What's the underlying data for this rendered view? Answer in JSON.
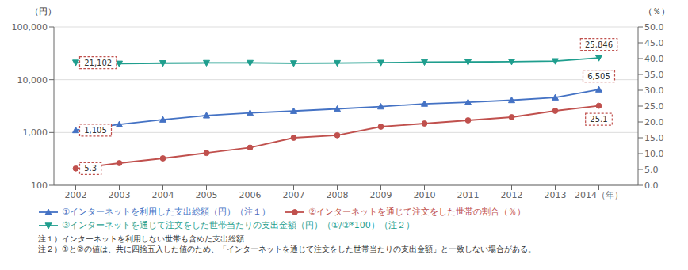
{
  "chart_data": {
    "type": "line",
    "x": [
      2002,
      2003,
      2004,
      2005,
      2006,
      2007,
      2008,
      2009,
      2010,
      2011,
      2012,
      2013,
      2014
    ],
    "xlim": [
      2001.5,
      2014.9
    ],
    "xticks": [
      2002,
      2003,
      2004,
      2005,
      2006,
      2007,
      2008,
      2009,
      2010,
      2011,
      2012,
      2013,
      {
        "value": 2014,
        "label": "2014（年）"
      }
    ],
    "log": "y",
    "ylim": [
      100,
      100000
    ],
    "yticks": [
      100,
      {
        "value": 1000,
        "label": "1,000"
      },
      {
        "value": 10000,
        "label": "10,000"
      },
      {
        "value": 100000,
        "label": "100,000"
      }
    ],
    "ylabel": "（円）",
    "y2lim": [
      0.0,
      50.0
    ],
    "y2ticks": [
      {
        "value": 0.0,
        "label": "0.0"
      },
      {
        "value": 5.0,
        "label": "5.0"
      },
      {
        "value": 10.0,
        "label": "10.0"
      },
      {
        "value": 15.0,
        "label": "15.0"
      },
      {
        "value": 20.0,
        "label": "20.0"
      },
      {
        "value": 25.0,
        "label": "25.0"
      },
      {
        "value": 30.0,
        "label": "30.0"
      },
      {
        "value": 35.0,
        "label": "35.0"
      },
      {
        "value": 40.0,
        "label": "40.0"
      },
      {
        "value": 45.0,
        "label": "45.0"
      },
      {
        "value": 50.0,
        "label": "50.0"
      }
    ],
    "y2label": "（％）",
    "grid": true,
    "legend": "bottom",
    "series": [
      {
        "name": "①インターネットを利用した支出総額（円）（注１）",
        "color": "#4472C4",
        "marker": "triangle-up",
        "values": [
          1105,
          1420,
          1750,
          2100,
          2350,
          2550,
          2800,
          3100,
          3500,
          3750,
          4100,
          4600,
          6505
        ]
      },
      {
        "name": "②インターネットを通じて注文をした世帯の割合（％）",
        "color": "#C0504D",
        "marker": "circle",
        "axis": "y2",
        "values": [
          5.3,
          7.0,
          8.5,
          10.2,
          11.9,
          15.0,
          15.8,
          18.5,
          19.5,
          20.5,
          21.5,
          23.5,
          25.1
        ]
      },
      {
        "name": "③インターネットを通じて注文をした世帯当たりの支出金額（円）（①/②*100）（注２）",
        "color": "#1F9E8E",
        "marker": "triangle-down",
        "values": [
          21102,
          20200,
          20600,
          20800,
          20800,
          20500,
          20700,
          21000,
          21500,
          21700,
          22000,
          22500,
          25846
        ]
      }
    ],
    "annotations": [
      {
        "text": "21,102",
        "x": 2002,
        "y": 21102,
        "color": "#C0504D"
      },
      {
        "text": "1,105",
        "x": 2002,
        "y": 1105,
        "color": "#C0504D"
      },
      {
        "text": "5.3",
        "x": 2002,
        "y": 5.3,
        "axis": "y2",
        "color": "#C0504D"
      },
      {
        "text": "25,846",
        "x": 2014,
        "y": 25846,
        "color": "#C0504D"
      },
      {
        "text": "6,505",
        "x": 2014,
        "y": 6505,
        "color": "#C0504D"
      },
      {
        "text": "25.1",
        "x": 2014,
        "y": 25.1,
        "axis": "y2",
        "color": "#C0504D"
      }
    ],
    "notes": [
      "注１）インターネットを利用しない世帯も含めた支出総額",
      "注２）①と②の値は、共に四捨五入した値のため、「インターネットを通じて注文をした世帯当たりの支出金額」と一致しない場合がある。"
    ]
  }
}
